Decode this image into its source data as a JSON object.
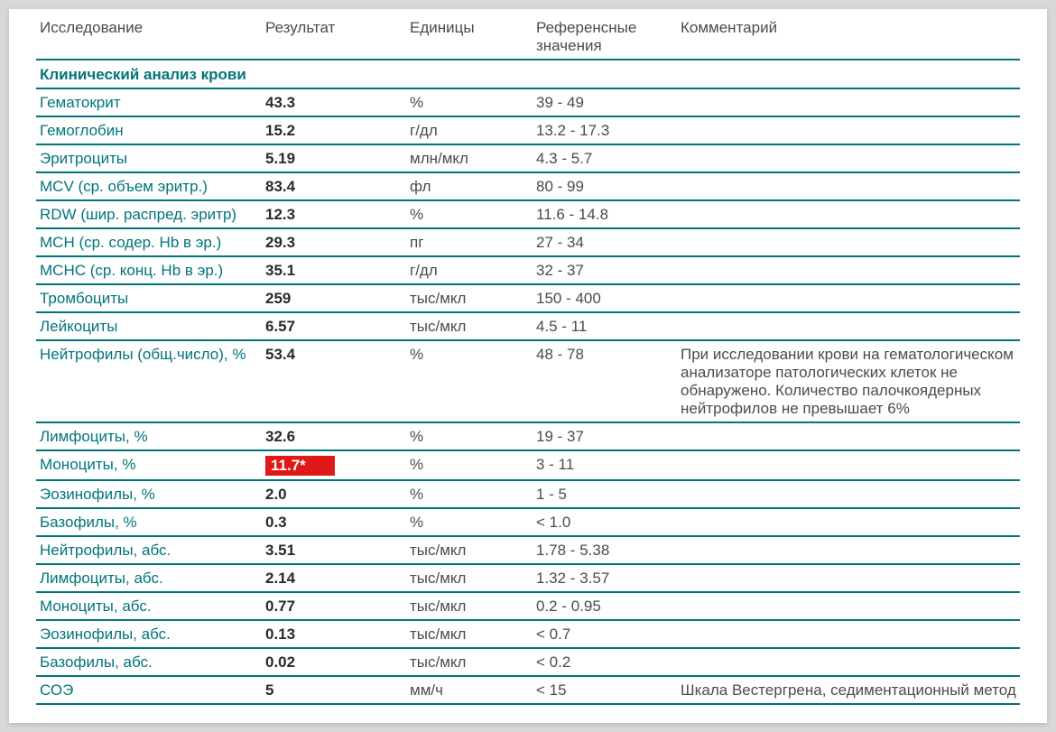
{
  "colors": {
    "accent": "#00757a",
    "flag_bg": "#e01818",
    "flag_text": "#ffffff",
    "text": "#4b4b4b",
    "sheet_bg": "#ffffff",
    "page_bg": "#d8d8d8"
  },
  "columns": {
    "name": "Исследование",
    "result": "Результат",
    "unit": "Единицы",
    "ref": "Референсные значения",
    "comment": "Комментарий"
  },
  "section_title": "Клинический анализ крови",
  "rows": [
    {
      "name": "Гематокрит",
      "result": "43.3",
      "unit": "%",
      "ref": "39 - 49",
      "comment": ""
    },
    {
      "name": "Гемоглобин",
      "result": "15.2",
      "unit": "г/дл",
      "ref": "13.2 - 17.3",
      "comment": ""
    },
    {
      "name": "Эритроциты",
      "result": "5.19",
      "unit": "млн/мкл",
      "ref": "4.3 - 5.7",
      "comment": ""
    },
    {
      "name": "MCV (ср. объем эритр.)",
      "result": "83.4",
      "unit": "фл",
      "ref": "80 - 99",
      "comment": ""
    },
    {
      "name": "RDW (шир. распред. эритр)",
      "result": "12.3",
      "unit": "%",
      "ref": "11.6 - 14.8",
      "comment": ""
    },
    {
      "name": "MCH (ср. содер. Hb в эр.)",
      "result": "29.3",
      "unit": "пг",
      "ref": "27 - 34",
      "comment": ""
    },
    {
      "name": "MCHC (ср. конц. Hb в эр.)",
      "result": "35.1",
      "unit": "г/дл",
      "ref": "32 - 37",
      "comment": ""
    },
    {
      "name": "Тромбоциты",
      "result": "259",
      "unit": "тыс/мкл",
      "ref": "150 - 400",
      "comment": ""
    },
    {
      "name": "Лейкоциты",
      "result": "6.57",
      "unit": "тыс/мкл",
      "ref": "4.5 - 11",
      "comment": ""
    },
    {
      "name": "Нейтрофилы (общ.число), %",
      "result": "53.4",
      "unit": "%",
      "ref": "48 - 78",
      "comment": "При исследовании крови на гематологическом анализаторе патологических клеток не обнаружено. Количество палочкоядерных нейтрофилов не превышает 6%"
    },
    {
      "name": "Лимфоциты, %",
      "result": "32.6",
      "unit": "%",
      "ref": "19 - 37",
      "comment": ""
    },
    {
      "name": "Моноциты, %",
      "result": "11.7*",
      "unit": "%",
      "ref": "3 - 11",
      "comment": "",
      "flag": true
    },
    {
      "name": "Эозинофилы, %",
      "result": "2.0",
      "unit": "%",
      "ref": "1 - 5",
      "comment": ""
    },
    {
      "name": "Базофилы, %",
      "result": "0.3",
      "unit": "%",
      "ref": "< 1.0",
      "comment": ""
    },
    {
      "name": "Нейтрофилы, абс.",
      "result": "3.51",
      "unit": "тыс/мкл",
      "ref": "1.78 - 5.38",
      "comment": ""
    },
    {
      "name": "Лимфоциты, абс.",
      "result": "2.14",
      "unit": "тыс/мкл",
      "ref": "1.32 - 3.57",
      "comment": ""
    },
    {
      "name": "Моноциты, абс.",
      "result": "0.77",
      "unit": "тыс/мкл",
      "ref": "0.2 - 0.95",
      "comment": ""
    },
    {
      "name": "Эозинофилы, абс.",
      "result": "0.13",
      "unit": "тыс/мкл",
      "ref": "< 0.7",
      "comment": ""
    },
    {
      "name": "Базофилы, абс.",
      "result": "0.02",
      "unit": "тыс/мкл",
      "ref": "< 0.2",
      "comment": ""
    },
    {
      "name": "СОЭ",
      "result": "5",
      "unit": "мм/ч",
      "ref": "< 15",
      "comment": "Шкала Вестергрена, седиментационный метод"
    }
  ]
}
